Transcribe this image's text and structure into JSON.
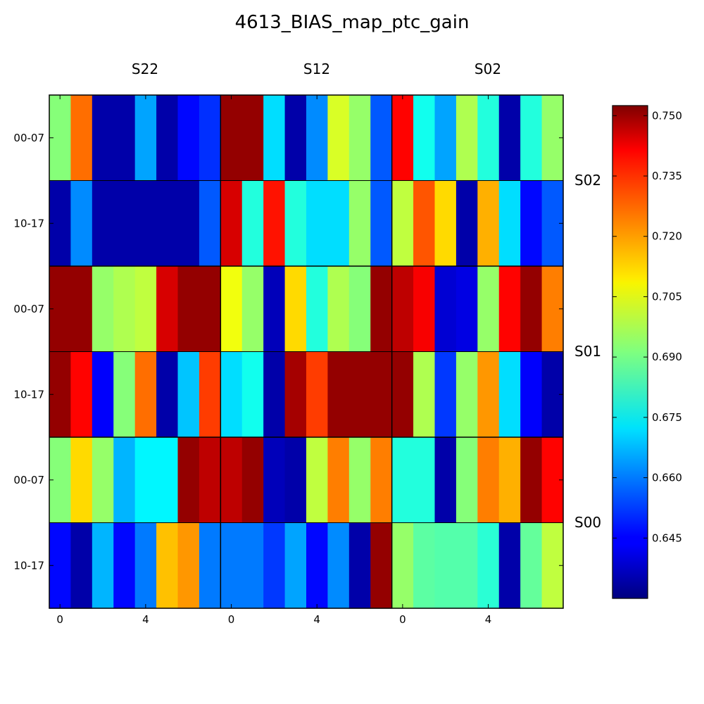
{
  "chart_data": {
    "type": "heatmap",
    "title": "4613_BIAS_map_ptc_gain",
    "colormap": "jet",
    "vmin": 0.63,
    "vmax": 0.7525,
    "sensor_columns": [
      "S22",
      "S12",
      "S02"
    ],
    "raft_rows": [
      "S02",
      "S01",
      "S00"
    ],
    "row_labels": [
      "00-07",
      "10-17",
      "00-07",
      "10-17",
      "00-07",
      "10-17"
    ],
    "x_tick_labels": [
      "0",
      "4"
    ],
    "colorbar_ticks": [
      {
        "value": 0.75,
        "label": "0.750"
      },
      {
        "value": 0.735,
        "label": "0.735"
      },
      {
        "value": 0.72,
        "label": "0.720"
      },
      {
        "value": 0.705,
        "label": "0.705"
      },
      {
        "value": 0.69,
        "label": "0.690"
      },
      {
        "value": 0.675,
        "label": "0.675"
      },
      {
        "value": 0.66,
        "label": "0.660"
      },
      {
        "value": 0.645,
        "label": "0.645"
      }
    ],
    "rows": [
      [
        0.692,
        0.724,
        0.635,
        0.635,
        0.665,
        0.635,
        0.646,
        0.651,
        0.75,
        0.75,
        0.672,
        0.635,
        0.662,
        0.702,
        0.694,
        0.656,
        0.737,
        0.678,
        0.665,
        0.697,
        0.68,
        0.635,
        0.68,
        0.694
      ],
      [
        0.635,
        0.662,
        0.635,
        0.635,
        0.635,
        0.635,
        0.635,
        0.656,
        0.742,
        0.68,
        0.735,
        0.68,
        0.672,
        0.672,
        0.694,
        0.656,
        0.699,
        0.727,
        0.711,
        0.635,
        0.716,
        0.672,
        0.646,
        0.656
      ],
      [
        0.75,
        0.75,
        0.694,
        0.697,
        0.699,
        0.742,
        0.75,
        0.75,
        0.705,
        0.694,
        0.637,
        0.711,
        0.68,
        0.697,
        0.692,
        0.75,
        0.745,
        0.738,
        0.64,
        0.642,
        0.694,
        0.737,
        0.75,
        0.722
      ],
      [
        0.75,
        0.737,
        0.645,
        0.692,
        0.724,
        0.635,
        0.669,
        0.73,
        0.672,
        0.678,
        0.635,
        0.748,
        0.73,
        0.75,
        0.75,
        0.75,
        0.75,
        0.697,
        0.652,
        0.694,
        0.719,
        0.672,
        0.645,
        0.635
      ],
      [
        0.692,
        0.711,
        0.694,
        0.667,
        0.675,
        0.675,
        0.75,
        0.745,
        0.745,
        0.75,
        0.637,
        0.635,
        0.699,
        0.722,
        0.694,
        0.722,
        0.68,
        0.68,
        0.635,
        0.692,
        0.722,
        0.716,
        0.75,
        0.737
      ],
      [
        0.646,
        0.635,
        0.667,
        0.646,
        0.66,
        0.714,
        0.719,
        0.66,
        0.66,
        0.66,
        0.652,
        0.665,
        0.646,
        0.662,
        0.635,
        0.75,
        0.694,
        0.687,
        0.686,
        0.686,
        0.681,
        0.635,
        0.688,
        0.699
      ]
    ]
  }
}
